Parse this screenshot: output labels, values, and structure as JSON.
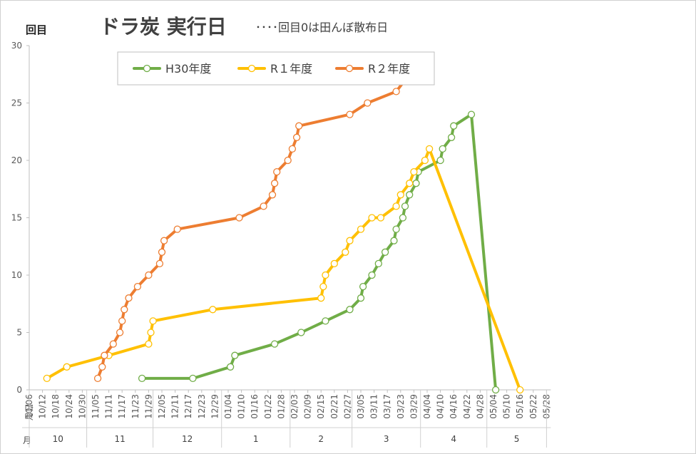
{
  "chart_data": {
    "type": "line",
    "title": "ドラ炭 実行日",
    "subtitle": "････回目0は田んぼ散布日",
    "ylabel": "回目",
    "xlabel": "月日",
    "month_row_label": "月",
    "ylim": [
      0,
      30
    ],
    "yticks": [
      "0",
      "5",
      "10",
      "15",
      "20",
      "25",
      "30"
    ],
    "xlim": [
      "10/06",
      "05/28"
    ],
    "xticks": [
      "10/06",
      "10/12",
      "10/18",
      "10/24",
      "10/30",
      "11/05",
      "11/11",
      "11/17",
      "11/23",
      "11/29",
      "12/05",
      "12/11",
      "12/17",
      "12/23",
      "12/29",
      "01/04",
      "01/10",
      "01/16",
      "01/22",
      "01/28",
      "02/03",
      "02/09",
      "02/15",
      "02/21",
      "02/27",
      "03/05",
      "03/11",
      "03/17",
      "03/23",
      "03/29",
      "04/04",
      "04/10",
      "04/16",
      "04/22",
      "04/28",
      "05/04",
      "05/10",
      "05/16",
      "05/22",
      "05/28"
    ],
    "months": [
      "10",
      "11",
      "12",
      "1",
      "2",
      "3",
      "4",
      "5"
    ],
    "legend_position": "top-left",
    "grid": false,
    "series": [
      {
        "name": "H30年度",
        "color": "#70AD47",
        "points": [
          [
            "11/26",
            1
          ],
          [
            "12/19",
            1
          ],
          [
            "01/05",
            2
          ],
          [
            "01/07",
            3
          ],
          [
            "01/25",
            4
          ],
          [
            "02/06",
            5
          ],
          [
            "02/17",
            6
          ],
          [
            "02/28",
            7
          ],
          [
            "03/05",
            8
          ],
          [
            "03/06",
            9
          ],
          [
            "03/10",
            10
          ],
          [
            "03/13",
            11
          ],
          [
            "03/16",
            12
          ],
          [
            "03/20",
            13
          ],
          [
            "03/21",
            14
          ],
          [
            "03/24",
            15
          ],
          [
            "03/25",
            16
          ],
          [
            "03/27",
            17
          ],
          [
            "03/30",
            18
          ],
          [
            "03/31",
            19
          ],
          [
            "04/10",
            20
          ],
          [
            "04/11",
            21
          ],
          [
            "04/15",
            22
          ],
          [
            "04/16",
            23
          ],
          [
            "04/24",
            24
          ],
          [
            "05/05",
            0
          ]
        ]
      },
      {
        "name": "R１年度",
        "color": "#FFC000",
        "points": [
          [
            "10/14",
            1
          ],
          [
            "10/23",
            2
          ],
          [
            "11/11",
            3
          ],
          [
            "11/29",
            4
          ],
          [
            "11/30",
            5
          ],
          [
            "12/01",
            6
          ],
          [
            "12/28",
            7
          ],
          [
            "02/15",
            8
          ],
          [
            "02/16",
            9
          ],
          [
            "02/17",
            10
          ],
          [
            "02/21",
            11
          ],
          [
            "02/26",
            12
          ],
          [
            "02/28",
            13
          ],
          [
            "03/05",
            14
          ],
          [
            "03/10",
            15
          ],
          [
            "03/14",
            15
          ],
          [
            "03/21",
            16
          ],
          [
            "03/23",
            17
          ],
          [
            "03/27",
            18
          ],
          [
            "03/29",
            19
          ],
          [
            "04/03",
            20
          ],
          [
            "04/05",
            21
          ],
          [
            "05/16",
            0
          ]
        ]
      },
      {
        "name": "R２年度",
        "color": "#ED7D31",
        "points": [
          [
            "11/06",
            1
          ],
          [
            "11/08",
            2
          ],
          [
            "11/09",
            3
          ],
          [
            "11/13",
            4
          ],
          [
            "11/16",
            5
          ],
          [
            "11/17",
            6
          ],
          [
            "11/18",
            7
          ],
          [
            "11/20",
            8
          ],
          [
            "11/24",
            9
          ],
          [
            "11/29",
            10
          ],
          [
            "12/04",
            11
          ],
          [
            "12/05",
            12
          ],
          [
            "12/06",
            13
          ],
          [
            "12/12",
            14
          ],
          [
            "01/09",
            15
          ],
          [
            "01/20",
            16
          ],
          [
            "01/24",
            17
          ],
          [
            "01/25",
            18
          ],
          [
            "01/26",
            19
          ],
          [
            "01/31",
            20
          ],
          [
            "02/02",
            21
          ],
          [
            "02/04",
            22
          ],
          [
            "02/05",
            23
          ],
          [
            "02/28",
            24
          ],
          [
            "03/08",
            25
          ],
          [
            "03/21",
            26
          ],
          [
            "03/25",
            27
          ]
        ]
      }
    ]
  }
}
